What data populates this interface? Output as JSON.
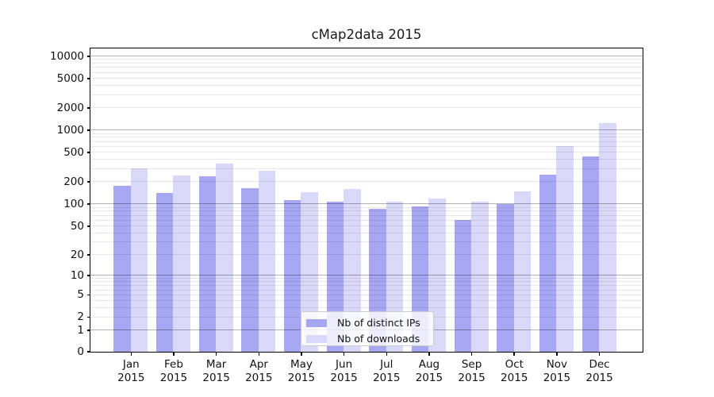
{
  "title": "cMap2data 2015",
  "year": "2015",
  "chart_data": {
    "type": "bar",
    "title": "cMap2data 2015",
    "categories": [
      "Jan 2015",
      "Feb 2015",
      "Mar 2015",
      "Apr 2015",
      "May 2015",
      "Jun 2015",
      "Jul 2015",
      "Aug 2015",
      "Sep 2015",
      "Oct 2015",
      "Nov 2015",
      "Dec 2015"
    ],
    "months": [
      "Jan",
      "Feb",
      "Mar",
      "Apr",
      "May",
      "Jun",
      "Jul",
      "Aug",
      "Sep",
      "Oct",
      "Nov",
      "Dec"
    ],
    "series": [
      {
        "name": "Nb of distinct IPs",
        "color": "#a6a6f2",
        "values": [
          180,
          143,
          238,
          164,
          114,
          108,
          87,
          94,
          61,
          102,
          255,
          443
        ]
      },
      {
        "name": "Nb of downloads",
        "color": "#d8d8f8",
        "values": [
          307,
          245,
          357,
          283,
          148,
          161,
          108,
          119,
          109,
          150,
          620,
          1250
        ]
      }
    ],
    "xlabel": "",
    "ylabel": "",
    "yscale": "log1p",
    "ylim": [
      0,
      13000
    ],
    "yticks": [
      0,
      1,
      2,
      5,
      10,
      20,
      50,
      100,
      200,
      500,
      1000,
      2000,
      5000,
      10000
    ],
    "grid": "on",
    "legend_position": "lower center"
  }
}
